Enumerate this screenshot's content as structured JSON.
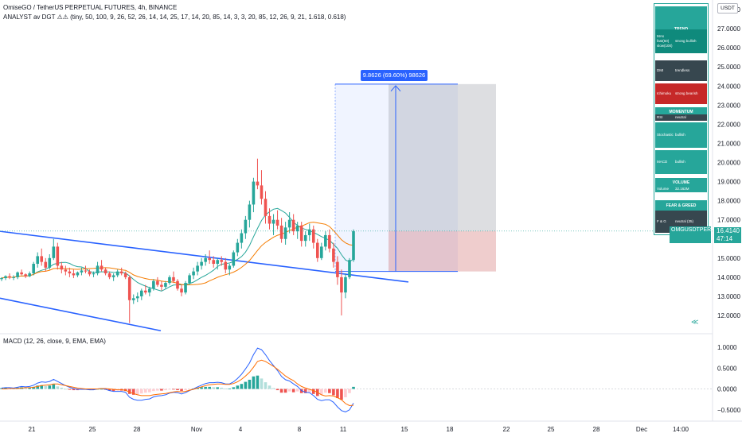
{
  "header": {
    "symbol_line": "OmiseGO / TetherUS PERPETUAL FUTURES, 4h, BINANCE",
    "indicator_line": "ANALYST av DGT ⚠⚠ (tiny, 50, 100, 9, 26, 52, 26, 14, 14, 25, 17, 14, 20, 85, 14, 3, 3, 20, 85, 12, 26, 9, 21, 1.618, 0.618)"
  },
  "currency_label": "USDT",
  "measure_label": "9.8626 (69.60%) 98626",
  "price_tag": {
    "symbol": "OMGUSDTPERP",
    "price": "16.4140",
    "countdown": "47:14"
  },
  "panel": {
    "sections": [
      {
        "title": "TREND",
        "rows": [
          {
            "key": "MAs\nfast(50)\nslow(100)",
            "value": "strong bullish",
            "color": "#0f8a7c"
          },
          {
            "key": "DMI",
            "value": "trendless",
            "color": "#37474f"
          },
          {
            "key": "Ichimoku",
            "value": "strong bearish",
            "color": "#c62828"
          }
        ]
      },
      {
        "title": "MOMENTUM",
        "rows": [
          {
            "key": "RSI",
            "value": "neutral",
            "color": "#37474f"
          },
          {
            "key": "Stochastic",
            "value": "bullish",
            "color": "#26a69a"
          },
          {
            "key": "MACD",
            "value": "bullish",
            "color": "#26a69a"
          }
        ]
      },
      {
        "title": "VOLUME",
        "rows": [
          {
            "key": "Volume",
            "value": "32.162M",
            "color": "#26a69a"
          }
        ]
      },
      {
        "title": "FEAR & GREED",
        "rows": [
          {
            "key": "F & G",
            "value": "neutral (35)",
            "color": "#37474f"
          }
        ]
      }
    ]
  },
  "macd_label": "MACD (12, 26, close, 9, EMA, EMA)",
  "chart_data": {
    "type": "candlestick",
    "timeframe": "4h",
    "y_ticks": [
      "28.0000",
      "27.0000",
      "26.0000",
      "25.0000",
      "24.0000",
      "23.0000",
      "22.0000",
      "21.0000",
      "20.0000",
      "19.0000",
      "18.0000",
      "17.0000",
      "16.0000",
      "15.0000",
      "14.0000",
      "13.0000",
      "12.0000"
    ],
    "ylim": [
      11.5,
      28.3
    ],
    "x_ticks": [
      "21",
      "25",
      "28",
      "Nov",
      "4",
      "8",
      "11",
      "15",
      "18",
      "22",
      "25",
      "28",
      "Dec",
      "14:00"
    ],
    "macd_ticks": [
      "1.0000",
      "0.5000",
      "0.0000",
      "−0.5000"
    ],
    "macd_ylim": [
      -0.65,
      1.1
    ],
    "candles": [
      [
        13.9,
        14.0,
        13.8,
        13.95
      ],
      [
        13.95,
        14.1,
        13.85,
        14.05
      ],
      [
        14.05,
        14.2,
        13.9,
        13.98
      ],
      [
        13.98,
        14.1,
        13.85,
        14.0
      ],
      [
        14.0,
        14.3,
        13.9,
        14.25
      ],
      [
        14.25,
        14.4,
        14.1,
        14.15
      ],
      [
        14.15,
        14.2,
        13.95,
        14.05
      ],
      [
        14.05,
        14.3,
        14.0,
        14.2
      ],
      [
        14.2,
        14.8,
        14.1,
        14.7
      ],
      [
        14.7,
        15.3,
        14.5,
        15.1
      ],
      [
        15.1,
        15.5,
        14.6,
        14.8
      ],
      [
        14.8,
        15.0,
        14.3,
        14.5
      ],
      [
        14.5,
        15.2,
        14.4,
        15.0
      ],
      [
        15.0,
        16.0,
        14.9,
        15.6
      ],
      [
        15.6,
        15.8,
        14.4,
        14.6
      ],
      [
        14.6,
        14.8,
        14.2,
        14.4
      ],
      [
        14.4,
        14.6,
        14.1,
        14.3
      ],
      [
        14.3,
        14.5,
        14.0,
        14.2
      ],
      [
        14.2,
        14.4,
        13.95,
        14.1
      ],
      [
        14.1,
        14.3,
        14.0,
        14.25
      ],
      [
        14.25,
        14.5,
        14.1,
        14.35
      ],
      [
        14.35,
        14.6,
        14.2,
        14.3
      ],
      [
        14.3,
        14.4,
        14.05,
        14.15
      ],
      [
        14.15,
        14.3,
        14.0,
        14.2
      ],
      [
        14.2,
        14.8,
        14.1,
        14.6
      ],
      [
        14.6,
        14.9,
        14.3,
        14.4
      ],
      [
        14.4,
        14.5,
        14.1,
        14.2
      ],
      [
        14.2,
        14.3,
        13.9,
        14.0
      ],
      [
        14.0,
        14.2,
        13.8,
        14.1
      ],
      [
        14.1,
        14.4,
        14.0,
        14.3
      ],
      [
        14.3,
        14.5,
        14.1,
        14.2
      ],
      [
        14.2,
        14.3,
        13.9,
        14.0
      ],
      [
        14.0,
        14.1,
        11.6,
        12.8
      ],
      [
        12.8,
        13.1,
        12.6,
        12.9
      ],
      [
        12.9,
        13.2,
        12.7,
        13.0
      ],
      [
        13.0,
        13.4,
        12.8,
        13.3
      ],
      [
        13.3,
        13.6,
        13.1,
        13.2
      ],
      [
        13.2,
        13.5,
        13.0,
        13.4
      ],
      [
        13.4,
        13.9,
        13.3,
        13.8
      ],
      [
        13.8,
        14.0,
        13.5,
        13.6
      ],
      [
        13.6,
        13.8,
        13.3,
        13.5
      ],
      [
        13.5,
        13.8,
        13.4,
        13.7
      ],
      [
        13.7,
        14.1,
        13.6,
        14.0
      ],
      [
        14.0,
        14.3,
        13.7,
        13.8
      ],
      [
        13.8,
        13.9,
        13.3,
        13.4
      ],
      [
        13.4,
        13.6,
        13.0,
        13.2
      ],
      [
        13.2,
        13.8,
        13.1,
        13.7
      ],
      [
        13.7,
        14.2,
        13.6,
        14.1
      ],
      [
        14.1,
        14.5,
        13.9,
        14.3
      ],
      [
        14.3,
        14.8,
        14.1,
        14.6
      ],
      [
        14.6,
        15.0,
        14.4,
        14.8
      ],
      [
        14.8,
        15.2,
        14.6,
        15.0
      ],
      [
        15.0,
        15.4,
        14.7,
        14.9
      ],
      [
        14.9,
        15.1,
        14.5,
        14.7
      ],
      [
        14.7,
        15.0,
        14.4,
        14.9
      ],
      [
        14.9,
        15.1,
        14.6,
        14.8
      ],
      [
        14.8,
        15.0,
        14.2,
        14.4
      ],
      [
        14.4,
        14.7,
        14.1,
        14.6
      ],
      [
        14.6,
        15.4,
        14.5,
        15.3
      ],
      [
        15.3,
        16.0,
        15.1,
        15.8
      ],
      [
        15.8,
        16.5,
        15.5,
        16.3
      ],
      [
        16.3,
        17.2,
        16.0,
        17.0
      ],
      [
        17.0,
        18.0,
        16.6,
        17.8
      ],
      [
        17.8,
        19.2,
        17.4,
        19.0
      ],
      [
        19.0,
        20.2,
        18.6,
        18.8
      ],
      [
        18.8,
        19.6,
        17.8,
        18.1
      ],
      [
        18.1,
        18.5,
        16.8,
        17.2
      ],
      [
        17.2,
        17.6,
        16.5,
        16.8
      ],
      [
        16.8,
        17.3,
        16.2,
        17.0
      ],
      [
        17.0,
        17.5,
        16.5,
        16.7
      ],
      [
        16.7,
        17.1,
        15.8,
        16.0
      ],
      [
        16.0,
        16.9,
        15.7,
        16.6
      ],
      [
        16.6,
        17.4,
        16.3,
        17.0
      ],
      [
        17.0,
        17.3,
        16.2,
        16.4
      ],
      [
        16.4,
        16.9,
        16.0,
        16.7
      ],
      [
        16.7,
        16.9,
        15.6,
        15.9
      ],
      [
        15.9,
        16.4,
        15.6,
        16.2
      ],
      [
        16.2,
        16.8,
        15.9,
        16.5
      ],
      [
        16.5,
        16.7,
        15.5,
        15.8
      ],
      [
        15.8,
        16.0,
        14.8,
        15.0
      ],
      [
        15.0,
        15.8,
        14.9,
        15.6
      ],
      [
        15.6,
        16.4,
        15.4,
        16.2
      ],
      [
        16.2,
        16.5,
        15.3,
        15.5
      ],
      [
        15.5,
        15.8,
        14.5,
        14.8
      ],
      [
        14.8,
        15.1,
        13.6,
        14.0
      ],
      [
        14.0,
        14.4,
        12.0,
        13.2
      ],
      [
        13.2,
        14.2,
        12.9,
        14.0
      ],
      [
        14.0,
        15.0,
        13.9,
        14.9
      ],
      [
        14.9,
        16.5,
        14.8,
        16.41
      ]
    ],
    "macd": {
      "hist": [
        0.02,
        0.03,
        0.02,
        0.01,
        0.03,
        0.04,
        0.02,
        0.03,
        0.05,
        0.08,
        0.09,
        0.07,
        0.08,
        0.11,
        0.06,
        0.03,
        0.0,
        -0.02,
        -0.03,
        -0.03,
        -0.02,
        -0.01,
        -0.02,
        -0.02,
        0.0,
        0.0,
        -0.02,
        -0.04,
        -0.05,
        -0.04,
        -0.04,
        -0.05,
        -0.12,
        -0.14,
        -0.13,
        -0.11,
        -0.09,
        -0.08,
        -0.05,
        -0.04,
        -0.04,
        -0.03,
        -0.01,
        -0.01,
        -0.03,
        -0.05,
        -0.03,
        -0.01,
        0.01,
        0.03,
        0.04,
        0.05,
        0.05,
        0.04,
        0.04,
        0.03,
        0.01,
        0.01,
        0.04,
        0.08,
        0.12,
        0.17,
        0.22,
        0.3,
        0.32,
        0.25,
        0.16,
        0.08,
        0.02,
        -0.03,
        -0.09,
        -0.09,
        -0.06,
        -0.08,
        -0.06,
        -0.1,
        -0.1,
        -0.08,
        -0.12,
        -0.17,
        -0.14,
        -0.09,
        -0.1,
        -0.15,
        -0.22,
        -0.26,
        -0.2,
        -0.1,
        0.05
      ],
      "macd": [
        0.02,
        0.03,
        0.03,
        0.02,
        0.04,
        0.06,
        0.05,
        0.06,
        0.09,
        0.14,
        0.17,
        0.16,
        0.18,
        0.23,
        0.18,
        0.13,
        0.08,
        0.04,
        0.01,
        -0.01,
        -0.01,
        -0.01,
        -0.02,
        -0.02,
        0.0,
        0.01,
        -0.01,
        -0.04,
        -0.06,
        -0.06,
        -0.06,
        -0.08,
        -0.2,
        -0.25,
        -0.27,
        -0.27,
        -0.25,
        -0.24,
        -0.19,
        -0.17,
        -0.16,
        -0.14,
        -0.1,
        -0.08,
        -0.09,
        -0.12,
        -0.09,
        -0.04,
        0.0,
        0.05,
        0.09,
        0.13,
        0.15,
        0.15,
        0.16,
        0.15,
        0.12,
        0.12,
        0.17,
        0.25,
        0.35,
        0.48,
        0.62,
        0.82,
        0.98,
        0.94,
        0.82,
        0.68,
        0.56,
        0.44,
        0.3,
        0.22,
        0.19,
        0.12,
        0.06,
        -0.04,
        -0.08,
        -0.09,
        -0.16,
        -0.25,
        -0.28,
        -0.26,
        -0.26,
        -0.32,
        -0.43,
        -0.52,
        -0.55,
        -0.5,
        -0.34
      ],
      "signal": [
        0.0,
        0.0,
        0.01,
        0.01,
        0.01,
        0.02,
        0.03,
        0.03,
        0.04,
        0.06,
        0.08,
        0.09,
        0.1,
        0.12,
        0.12,
        0.1,
        0.08,
        0.06,
        0.04,
        0.02,
        0.01,
        0.0,
        0.0,
        0.0,
        0.0,
        0.01,
        0.01,
        0.0,
        -0.01,
        -0.02,
        -0.02,
        -0.03,
        -0.08,
        -0.11,
        -0.14,
        -0.16,
        -0.16,
        -0.16,
        -0.14,
        -0.13,
        -0.12,
        -0.11,
        -0.09,
        -0.07,
        -0.06,
        -0.07,
        -0.06,
        -0.03,
        -0.01,
        0.02,
        0.05,
        0.08,
        0.1,
        0.11,
        0.12,
        0.12,
        0.11,
        0.11,
        0.13,
        0.17,
        0.23,
        0.31,
        0.4,
        0.52,
        0.66,
        0.69,
        0.66,
        0.6,
        0.54,
        0.47,
        0.39,
        0.31,
        0.25,
        0.2,
        0.12,
        0.06,
        0.02,
        -0.01,
        -0.04,
        -0.08,
        -0.14,
        -0.17,
        -0.16,
        -0.17,
        -0.21,
        -0.26,
        -0.35,
        -0.4,
        -0.39
      ]
    }
  }
}
